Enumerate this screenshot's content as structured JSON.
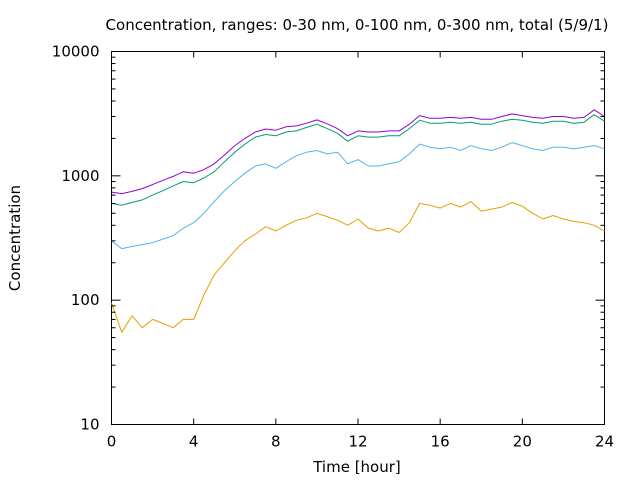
{
  "chart_data": {
    "type": "line",
    "title": "Concentration, ranges: 0-30 nm, 0-100 nm, 0-300 nm, total (5/9/1)",
    "xlabel": "Time [hour]",
    "ylabel": "Concentration",
    "xlim": [
      0,
      24
    ],
    "ylim": [
      10,
      10000
    ],
    "yscale": "log",
    "grid": false,
    "legend": "none",
    "x_ticks": [
      "0",
      "4",
      "8",
      "12",
      "16",
      "20",
      "24"
    ],
    "y_ticks": [
      "10",
      "100",
      "1000",
      "10000"
    ],
    "x": [
      0,
      0.5,
      1,
      1.5,
      2,
      2.5,
      3,
      3.5,
      4,
      4.5,
      5,
      5.5,
      6,
      6.5,
      7,
      7.5,
      8,
      8.5,
      9,
      9.5,
      10,
      10.5,
      11,
      11.5,
      12,
      12.5,
      13,
      13.5,
      14,
      14.5,
      15,
      15.5,
      16,
      16.5,
      17,
      17.5,
      18,
      18.5,
      19,
      19.5,
      20,
      20.5,
      21,
      21.5,
      22,
      22.5,
      23,
      23.5,
      24
    ],
    "series": [
      {
        "color": "#e69f00",
        "values": [
          95,
          55,
          75,
          60,
          70,
          65,
          60,
          70,
          70,
          110,
          160,
          200,
          250,
          300,
          340,
          390,
          360,
          400,
          440,
          460,
          500,
          470,
          440,
          400,
          450,
          380,
          360,
          380,
          350,
          420,
          600,
          580,
          550,
          600,
          560,
          620,
          520,
          540,
          560,
          610,
          570,
          500,
          450,
          480,
          450,
          430,
          420,
          400,
          360
        ]
      },
      {
        "color": "#56b4e9",
        "values": [
          300,
          260,
          270,
          280,
          290,
          310,
          330,
          380,
          420,
          500,
          620,
          760,
          900,
          1050,
          1200,
          1250,
          1150,
          1300,
          1450,
          1550,
          1600,
          1500,
          1550,
          1250,
          1350,
          1200,
          1200,
          1250,
          1300,
          1500,
          1800,
          1700,
          1650,
          1700,
          1600,
          1750,
          1650,
          1600,
          1700,
          1850,
          1750,
          1650,
          1600,
          1700,
          1700,
          1650,
          1700,
          1750,
          1650
        ]
      },
      {
        "color": "#009e73",
        "values": [
          600,
          580,
          610,
          640,
          700,
          760,
          830,
          900,
          880,
          960,
          1080,
          1300,
          1550,
          1800,
          2050,
          2150,
          2100,
          2250,
          2300,
          2450,
          2600,
          2400,
          2200,
          1900,
          2100,
          2050,
          2050,
          2100,
          2100,
          2400,
          2800,
          2650,
          2650,
          2700,
          2650,
          2700,
          2600,
          2600,
          2750,
          2850,
          2800,
          2700,
          2650,
          2750,
          2750,
          2650,
          2700,
          3100,
          2750
        ]
      },
      {
        "color": "#9400d3",
        "values": [
          740,
          720,
          750,
          790,
          850,
          920,
          990,
          1080,
          1050,
          1120,
          1250,
          1470,
          1750,
          2000,
          2250,
          2380,
          2330,
          2480,
          2520,
          2650,
          2820,
          2620,
          2400,
          2100,
          2300,
          2250,
          2250,
          2300,
          2300,
          2600,
          3050,
          2900,
          2900,
          2950,
          2900,
          2950,
          2850,
          2850,
          3000,
          3150,
          3050,
          2950,
          2900,
          3000,
          3000,
          2900,
          2950,
          3400,
          3000
        ]
      }
    ]
  }
}
